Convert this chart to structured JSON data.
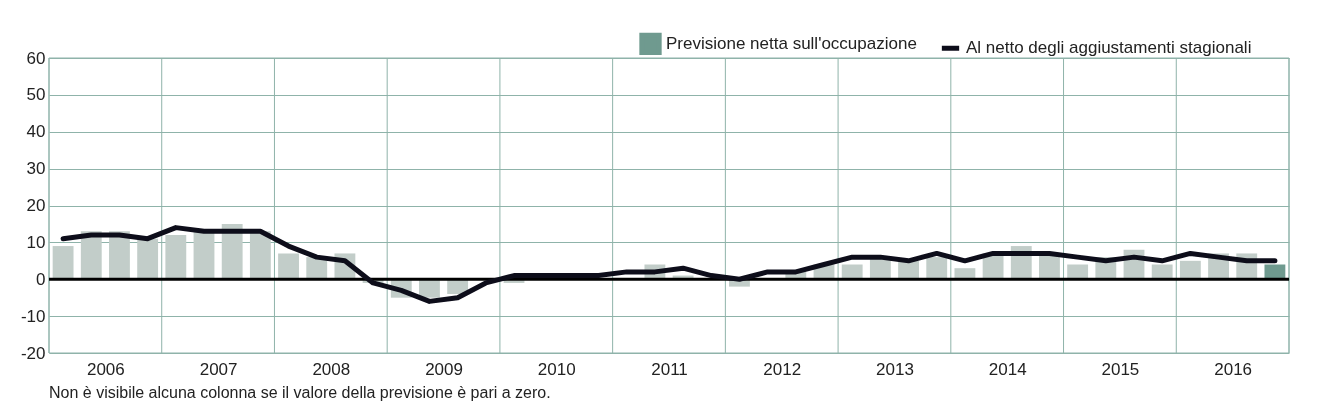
{
  "chart_data": {
    "type": "bar",
    "x": [
      2006.125,
      2006.375,
      2006.625,
      2006.875,
      2007.125,
      2007.375,
      2007.625,
      2007.875,
      2008.125,
      2008.375,
      2008.625,
      2008.875,
      2009.125,
      2009.375,
      2009.625,
      2009.875,
      2010.125,
      2010.375,
      2010.625,
      2010.875,
      2011.125,
      2011.375,
      2011.625,
      2011.875,
      2012.125,
      2012.375,
      2012.625,
      2012.875,
      2013.125,
      2013.375,
      2013.625,
      2013.875,
      2014.125,
      2014.375,
      2014.625,
      2014.875,
      2015.125,
      2015.375,
      2015.625,
      2015.875,
      2016.125,
      2016.375,
      2016.625,
      2016.875
    ],
    "series": [
      {
        "name": "Previsione netta sull'occupazione",
        "color": "#6f9a8f",
        "colors": [
          "#c2cdc9",
          "#c2cdc9",
          "#c2cdc9",
          "#c2cdc9",
          "#c2cdc9",
          "#c2cdc9",
          "#c2cdc9",
          "#c2cdc9",
          "#c2cdc9",
          "#c2cdc9",
          "#c2cdc9",
          "#c2cdc9",
          "#c2cdc9",
          "#c2cdc9",
          "#c2cdc9",
          "#c2cdc9",
          "#c2cdc9",
          "#c2cdc9",
          "#c2cdc9",
          "#c2cdc9",
          "#c2cdc9",
          "#c2cdc9",
          "#c2cdc9",
          "#c2cdc9",
          "#c2cdc9",
          "#c2cdc9",
          "#c2cdc9",
          "#c2cdc9",
          "#c2cdc9",
          "#c2cdc9",
          "#c2cdc9",
          "#c2cdc9",
          "#c2cdc9",
          "#c2cdc9",
          "#c2cdc9",
          "#c2cdc9",
          "#c2cdc9",
          "#c2cdc9",
          "#c2cdc9",
          "#c2cdc9",
          "#c2cdc9",
          "#c2cdc9",
          "#c2cdc9",
          "#6f9a8f"
        ],
        "values": [
          9,
          13,
          13,
          11,
          12,
          13,
          15,
          13,
          7,
          6,
          7,
          -1,
          -5,
          -5,
          -4,
          0,
          -1,
          null,
          null,
          null,
          null,
          4,
          1,
          0,
          -2,
          null,
          2,
          4,
          4,
          6,
          5,
          6,
          3,
          7,
          9,
          7,
          4,
          6,
          8,
          4,
          5,
          7,
          7,
          4
        ]
      },
      {
        "name": "Al netto degli aggiustamenti stagionali",
        "type": "line",
        "color": "#0d0d1a",
        "values": [
          11,
          12,
          12,
          11,
          14,
          13,
          13,
          13,
          9,
          6,
          5,
          -1,
          -3,
          -6,
          -5,
          -1,
          1,
          1,
          1,
          1,
          2,
          2,
          3,
          1,
          0,
          2,
          2,
          4,
          6,
          6,
          5,
          7,
          5,
          7,
          7,
          7,
          6,
          5,
          6,
          5,
          7,
          6,
          5,
          5
        ]
      }
    ],
    "xlim": [
      2006,
      2017
    ],
    "xticks": [
      {
        "value": 2006,
        "label": null
      },
      {
        "value": 2006.5,
        "label": "2006"
      },
      {
        "value": 2007,
        "label": null
      },
      {
        "value": 2007.5,
        "label": "2007"
      },
      {
        "value": 2008,
        "label": null
      },
      {
        "value": 2008.5,
        "label": "2008"
      },
      {
        "value": 2009,
        "label": null
      },
      {
        "value": 2009.5,
        "label": "2009"
      },
      {
        "value": 2010,
        "label": null
      },
      {
        "value": 2010.5,
        "label": "2010"
      },
      {
        "value": 2011,
        "label": null
      },
      {
        "value": 2011.5,
        "label": "2011"
      },
      {
        "value": 2012,
        "label": null
      },
      {
        "value": 2012.5,
        "label": "2012"
      },
      {
        "value": 2013,
        "label": null
      },
      {
        "value": 2013.5,
        "label": "2013"
      },
      {
        "value": 2014,
        "label": null
      },
      {
        "value": 2014.5,
        "label": "2014"
      },
      {
        "value": 2015,
        "label": null
      },
      {
        "value": 2015.5,
        "label": "2015"
      },
      {
        "value": 2016,
        "label": null
      },
      {
        "value": 2016.5,
        "label": "2016"
      },
      {
        "value": 2017,
        "label": null
      }
    ],
    "ylim": [
      -20,
      60
    ],
    "yticks": [
      -20,
      -10,
      0,
      10,
      20,
      30,
      40,
      50,
      60
    ],
    "grid": true,
    "legend": "top right",
    "ref_lines": [
      {
        "axis": "y",
        "value": 0,
        "color": "#000000"
      }
    ],
    "annotations": [
      "Non è visibile alcuna colonna se il valore della previsione è pari a zero."
    ]
  }
}
